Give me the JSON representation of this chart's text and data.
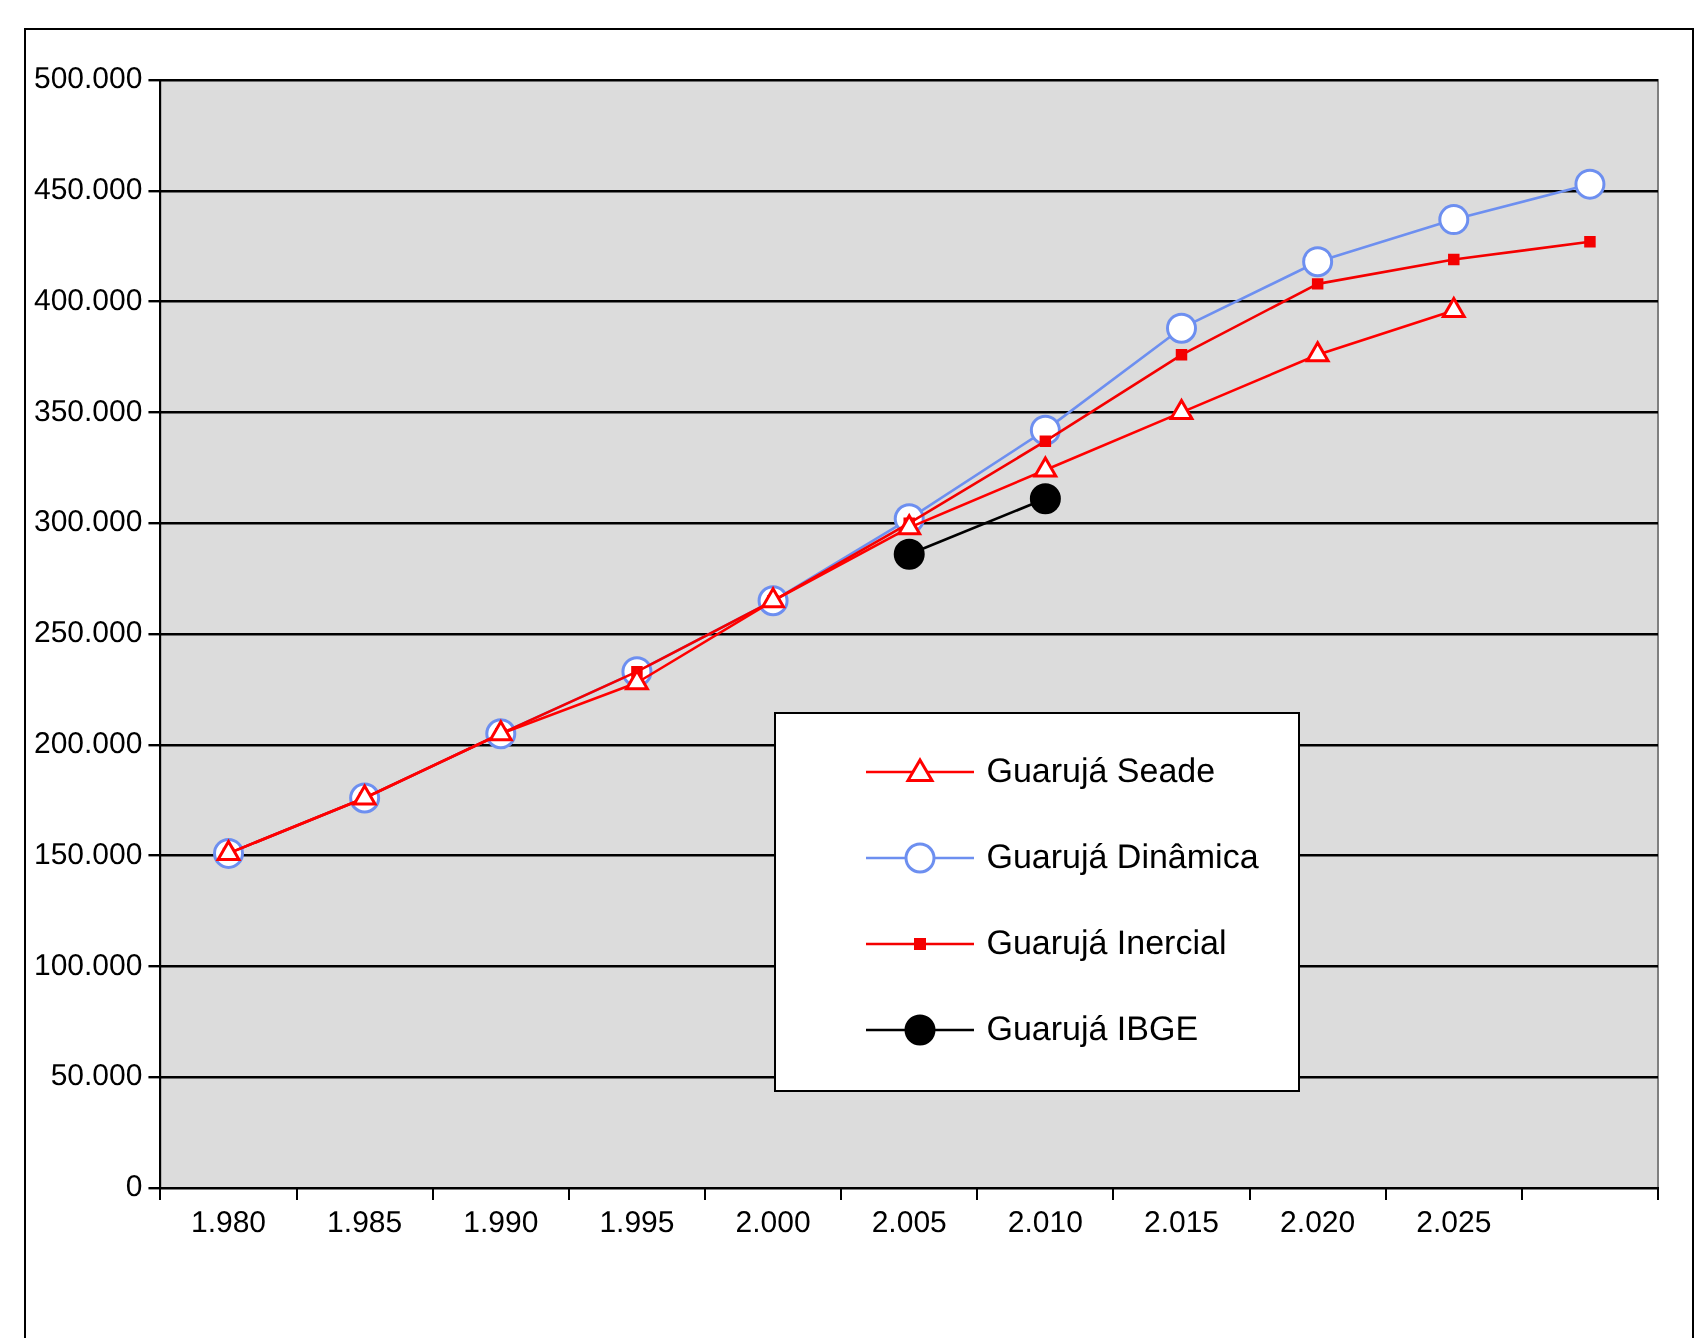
{
  "chart_data": {
    "type": "line",
    "categories": [
      "1.980",
      "1.985",
      "1.990",
      "1.995",
      "2.000",
      "2.005",
      "2.010",
      "2.015",
      "2.020",
      "2.025",
      null
    ],
    "ylim": [
      0,
      500000
    ],
    "yticks": [
      {
        "value": 0,
        "label": "0"
      },
      {
        "value": 50000,
        "label": "50.000"
      },
      {
        "value": 100000,
        "label": "100.000"
      },
      {
        "value": 150000,
        "label": "150.000"
      },
      {
        "value": 200000,
        "label": "200.000"
      },
      {
        "value": 250000,
        "label": "250.000"
      },
      {
        "value": 300000,
        "label": "300.000"
      },
      {
        "value": 350000,
        "label": "350.000"
      },
      {
        "value": 400000,
        "label": "400.000"
      },
      {
        "value": 450000,
        "label": "450.000"
      },
      {
        "value": 500000,
        "label": "500.000"
      }
    ],
    "grid": "y",
    "legend": "bottom right",
    "series": [
      {
        "name": "Guarujá Seade",
        "color": "#ff0000",
        "marker": "triangle",
        "values": [
          151000,
          176000,
          205000,
          228000,
          265000,
          298000,
          324000,
          350000,
          376000,
          396000,
          null
        ]
      },
      {
        "name": "Guarujá Dinâmica",
        "color": "#6d8ff0",
        "marker": "circle",
        "values": [
          151000,
          176000,
          205000,
          233000,
          265000,
          302000,
          342000,
          388000,
          418000,
          437000,
          453000
        ]
      },
      {
        "name": "Guarujá Inercial",
        "color": "#f40000",
        "marker": "square",
        "values": [
          151000,
          176000,
          205000,
          233000,
          265000,
          300000,
          337000,
          376000,
          408000,
          419000,
          427000
        ]
      },
      {
        "name": "Guarujá IBGE",
        "color": "#000000",
        "marker": "circle",
        "values": [
          null,
          null,
          null,
          null,
          null,
          286000,
          311000,
          null,
          null,
          null,
          null
        ]
      }
    ]
  }
}
